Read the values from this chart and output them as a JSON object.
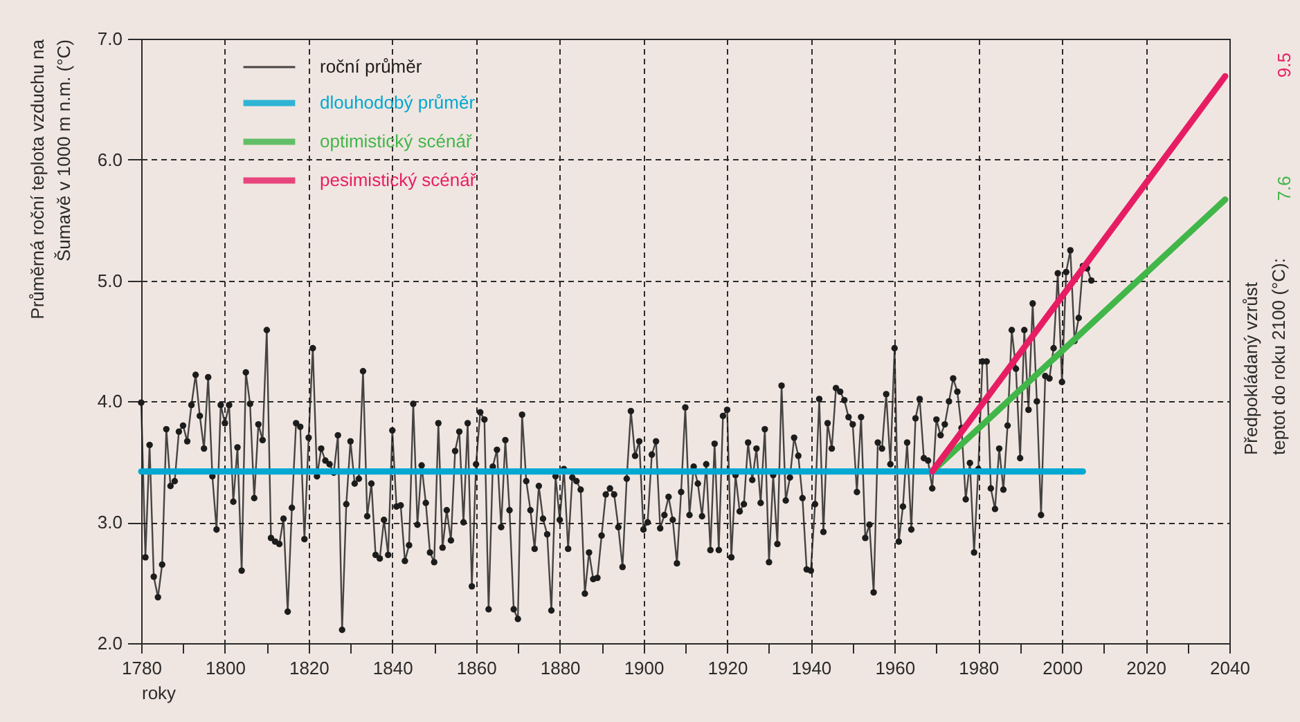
{
  "chart_data": {
    "type": "line",
    "xlabel": "roky",
    "ylabel": "Průměrná roční teplota vzduchu na\nŠumavě v 1000 m n.m. (°C)",
    "annotations": [
      "Předpokládaný vzrůst\nteptot do roku 2100 (°C):",
      {
        "text": "7.6",
        "x": 2039,
        "y": 5.67
      },
      {
        "text": "9.5",
        "x": 2039,
        "y": 6.69
      }
    ],
    "xlim": [
      1780,
      2040
    ],
    "xticks": [
      1780,
      {
        "value": 1790,
        "label": null
      },
      1800,
      {
        "value": 1810,
        "label": null
      },
      1820,
      {
        "value": 1830,
        "label": null
      },
      1840,
      {
        "value": 1850,
        "label": null
      },
      1860,
      {
        "value": 1870,
        "label": null
      },
      1880,
      {
        "value": 1890,
        "label": null
      },
      1900,
      {
        "value": 1910,
        "label": null
      },
      1920,
      {
        "value": 1930,
        "label": null
      },
      1940,
      {
        "value": 1950,
        "label": null
      },
      1960,
      {
        "value": 1970,
        "label": null
      },
      1980,
      {
        "value": 1990,
        "label": null
      },
      2000,
      {
        "value": 2010,
        "label": null
      },
      2020,
      {
        "value": 2030,
        "label": null
      },
      2040
    ],
    "ylim": [
      2,
      7
    ],
    "yticks": [
      {
        "value": 2,
        "label": "2.0"
      },
      {
        "value": 3,
        "label": "3.0"
      },
      {
        "value": 4,
        "label": "4.0"
      },
      {
        "value": 5,
        "label": "5.0"
      },
      {
        "value": 6,
        "label": "6.0"
      },
      {
        "value": 7,
        "label": "7.0"
      }
    ],
    "grid": true,
    "legend": "top left",
    "series": [
      {
        "name": "roční průměr",
        "color": "#1c1c1c",
        "marker": "circle",
        "x": [
          1780,
          1781,
          1782,
          1783,
          1784,
          1785,
          1786,
          1787,
          1788,
          1789,
          1790,
          1791,
          1792,
          1793,
          1794,
          1795,
          1796,
          1797,
          1798,
          1799,
          1800,
          1801,
          1802,
          1803,
          1804,
          1805,
          1806,
          1807,
          1808,
          1809,
          1810,
          1811,
          1812,
          1813,
          1814,
          1815,
          1816,
          1817,
          1818,
          1819,
          1820,
          1821,
          1822,
          1823,
          1824,
          1825,
          1826,
          1827,
          1828,
          1829,
          1830,
          1831,
          1832,
          1833,
          1834,
          1835,
          1836,
          1837,
          1838,
          1839,
          1840,
          1841,
          1842,
          1843,
          1844,
          1845,
          1846,
          1847,
          1848,
          1849,
          1850,
          1851,
          1852,
          1853,
          1854,
          1855,
          1856,
          1857,
          1858,
          1859,
          1860,
          1861,
          1862,
          1863,
          1864,
          1865,
          1866,
          1867,
          1868,
          1869,
          1870,
          1871,
          1872,
          1873,
          1874,
          1875,
          1876,
          1877,
          1878,
          1879,
          1880,
          1881,
          1882,
          1883,
          1884,
          1885,
          1886,
          1887,
          1888,
          1889,
          1890,
          1891,
          1892,
          1893,
          1894,
          1895,
          1896,
          1897,
          1898,
          1899,
          1900,
          1901,
          1902,
          1903,
          1904,
          1905,
          1906,
          1907,
          1908,
          1909,
          1910,
          1911,
          1912,
          1913,
          1914,
          1915,
          1916,
          1917,
          1918,
          1919,
          1920,
          1921,
          1922,
          1923,
          1924,
          1925,
          1926,
          1927,
          1928,
          1929,
          1930,
          1931,
          1932,
          1933,
          1934,
          1935,
          1936,
          1937,
          1938,
          1939,
          1940,
          1941,
          1942,
          1943,
          1944,
          1945,
          1946,
          1947,
          1948,
          1949,
          1950,
          1951,
          1952,
          1953,
          1954,
          1955,
          1956,
          1957,
          1958,
          1959,
          1960,
          1961,
          1962,
          1963,
          1964,
          1965,
          1966,
          1967,
          1968,
          1969,
          1970,
          1971,
          1972,
          1973,
          1974,
          1975,
          1976,
          1977,
          1978,
          1979,
          1980,
          1981,
          1982,
          1983,
          1984,
          1985,
          1986,
          1987,
          1988,
          1989,
          1990,
          1991,
          1992,
          1993,
          1994,
          1995,
          1996,
          1997,
          1998,
          1999,
          2000,
          2001,
          2002,
          2003,
          2004,
          2005,
          2006,
          2007
        ],
        "values": [
          3.99,
          2.71,
          3.64,
          2.55,
          2.38,
          2.65,
          3.77,
          3.3,
          3.34,
          3.75,
          3.8,
          3.67,
          3.97,
          4.22,
          3.88,
          3.61,
          4.2,
          3.38,
          2.94,
          3.97,
          3.82,
          3.97,
          3.17,
          3.62,
          2.6,
          4.24,
          3.98,
          3.2,
          3.81,
          3.68,
          4.59,
          2.87,
          2.84,
          2.82,
          3.03,
          2.26,
          3.12,
          3.82,
          3.79,
          2.86,
          3.7,
          4.44,
          3.38,
          3.61,
          3.51,
          3.48,
          3.41,
          3.72,
          2.11,
          3.15,
          3.67,
          3.32,
          3.36,
          4.25,
          3.05,
          3.32,
          2.73,
          2.7,
          3.02,
          2.73,
          3.76,
          3.13,
          3.14,
          2.68,
          2.81,
          3.98,
          2.98,
          3.47,
          3.16,
          2.75,
          2.67,
          3.82,
          2.79,
          3.1,
          2.85,
          3.59,
          3.75,
          3.0,
          3.82,
          2.47,
          3.48,
          3.91,
          3.85,
          2.28,
          3.46,
          3.6,
          2.96,
          3.68,
          3.1,
          2.28,
          2.2,
          3.89,
          3.34,
          3.1,
          2.78,
          3.3,
          3.03,
          2.9,
          2.27,
          3.38,
          3.02,
          3.44,
          2.78,
          3.37,
          3.34,
          3.27,
          2.41,
          2.75,
          2.53,
          2.54,
          2.89,
          3.23,
          3.28,
          3.23,
          2.96,
          2.63,
          3.36,
          3.92,
          3.55,
          3.67,
          2.94,
          3.0,
          3.56,
          3.67,
          2.95,
          3.06,
          3.21,
          3.02,
          2.66,
          3.25,
          3.95,
          3.06,
          3.46,
          3.32,
          3.05,
          3.48,
          2.77,
          3.65,
          2.77,
          3.88,
          3.93,
          2.71,
          3.39,
          3.09,
          3.15,
          3.66,
          3.35,
          3.61,
          3.16,
          3.77,
          2.67,
          3.39,
          2.82,
          4.13,
          3.18,
          3.37,
          3.7,
          3.55,
          3.2,
          2.61,
          2.6,
          3.15,
          4.02,
          2.92,
          3.82,
          3.61,
          4.11,
          4.08,
          4.01,
          3.87,
          3.81,
          3.25,
          3.87,
          2.87,
          2.98,
          2.42,
          3.66,
          3.61,
          4.06,
          3.48,
          4.44,
          2.84,
          3.13,
          3.66,
          2.94,
          3.86,
          4.02,
          3.53,
          3.51,
          3.28,
          3.85,
          3.72,
          3.81,
          4.0,
          4.19,
          4.08,
          3.78,
          3.19,
          3.49,
          2.75,
          3.44,
          4.33,
          4.33,
          3.28,
          3.11,
          3.61,
          3.27,
          3.8,
          4.59,
          4.27,
          3.53,
          4.59,
          3.93,
          4.81,
          4.0,
          3.06,
          4.21,
          4.19,
          4.44,
          5.06,
          4.16,
          5.07,
          5.25,
          4.5,
          4.69,
          5.12,
          5.1,
          5.0
        ]
      },
      {
        "name": "dlouhodobý průměr",
        "color": "#00a8d2",
        "x": [
          1780,
          2005
        ],
        "values": [
          3.42,
          3.42
        ]
      },
      {
        "name": "optimistický scénář",
        "color": "#41b649",
        "x": [
          1969,
          2039
        ],
        "values": [
          3.42,
          5.67
        ]
      },
      {
        "name": "pesimistický scénář",
        "color": "#e71d64",
        "x": [
          1969,
          2039
        ],
        "values": [
          3.42,
          6.69
        ]
      }
    ]
  }
}
